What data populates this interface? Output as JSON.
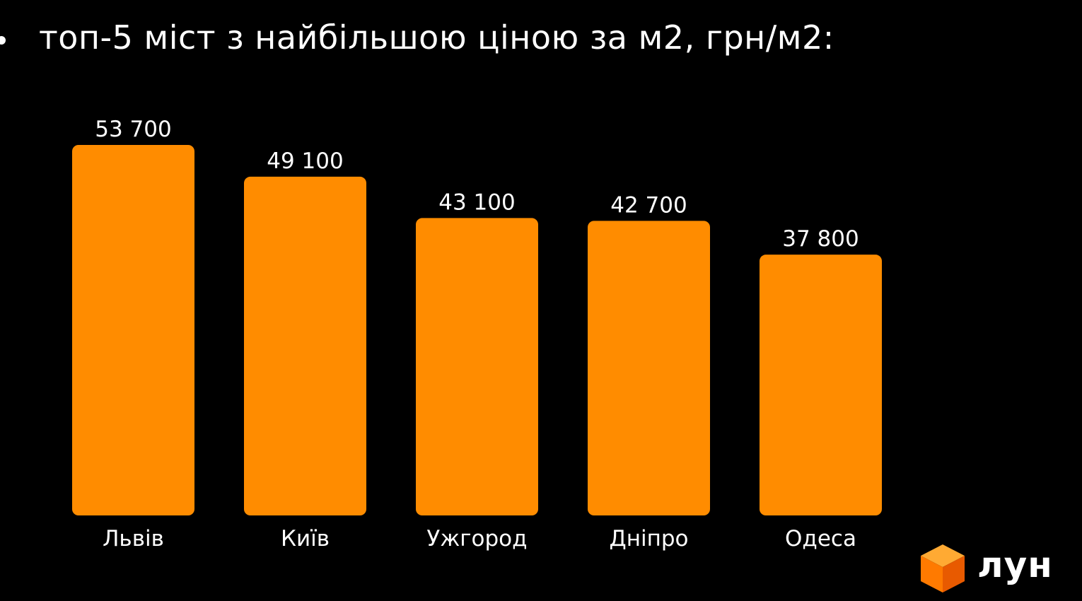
{
  "header": {
    "title": "топ-5 міст з найбільшою ціною за м2, грн/м2:"
  },
  "chart_data": {
    "type": "bar",
    "title": "топ-5 міст з найбільшою ціною за м2, грн/м2:",
    "categories": [
      "Львів",
      "Київ",
      "Ужгород",
      "Дніпро",
      "Одеса"
    ],
    "values": [
      53700,
      49100,
      43100,
      42700,
      37800
    ],
    "value_labels": [
      "53 700",
      "49 100",
      "43 100",
      "42 700",
      "37 800"
    ],
    "xlabel": "",
    "ylabel": "",
    "ylim": [
      0,
      53700
    ],
    "grid": false,
    "legend": "none",
    "bar_color": "#FF8C00"
  },
  "logo": {
    "text": "лун",
    "icon": "orange-cube-icon",
    "colors": {
      "top": "#FFAA33",
      "left": "#FF7A00",
      "right": "#E85A00"
    }
  }
}
